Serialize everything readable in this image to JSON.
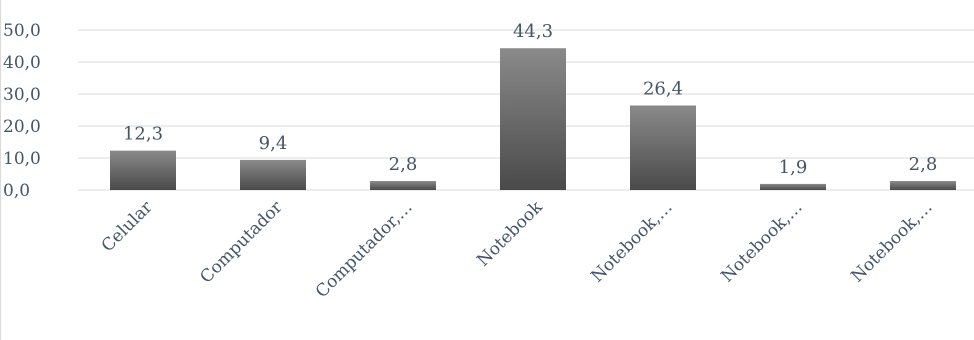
{
  "chart_data": {
    "type": "bar",
    "categories": [
      "Celular",
      "Computador",
      "Computador,…",
      "Notebook",
      "Notebook,…",
      "Notebook,…",
      "Notebook,…"
    ],
    "values": [
      12.3,
      9.4,
      2.8,
      44.3,
      26.4,
      1.9,
      2.8
    ],
    "data_labels": [
      "12,3",
      "9,4",
      "2,8",
      "44,3",
      "26,4",
      "1,9",
      "2,8"
    ],
    "y_ticks": [
      0,
      10,
      20,
      30,
      40,
      50
    ],
    "y_tick_labels": [
      "0,0",
      "10,0",
      "20,0",
      "30,0",
      "40,0",
      "50,0"
    ],
    "ylim": [
      0,
      50
    ],
    "grid": true,
    "legend": "none",
    "colors": {
      "bar_top": "#8a8a8a",
      "bar_bottom": "#4a4a4a",
      "text": "#44546a",
      "grid": "#d9d9d9"
    },
    "title": "",
    "xlabel": "",
    "ylabel": ""
  }
}
